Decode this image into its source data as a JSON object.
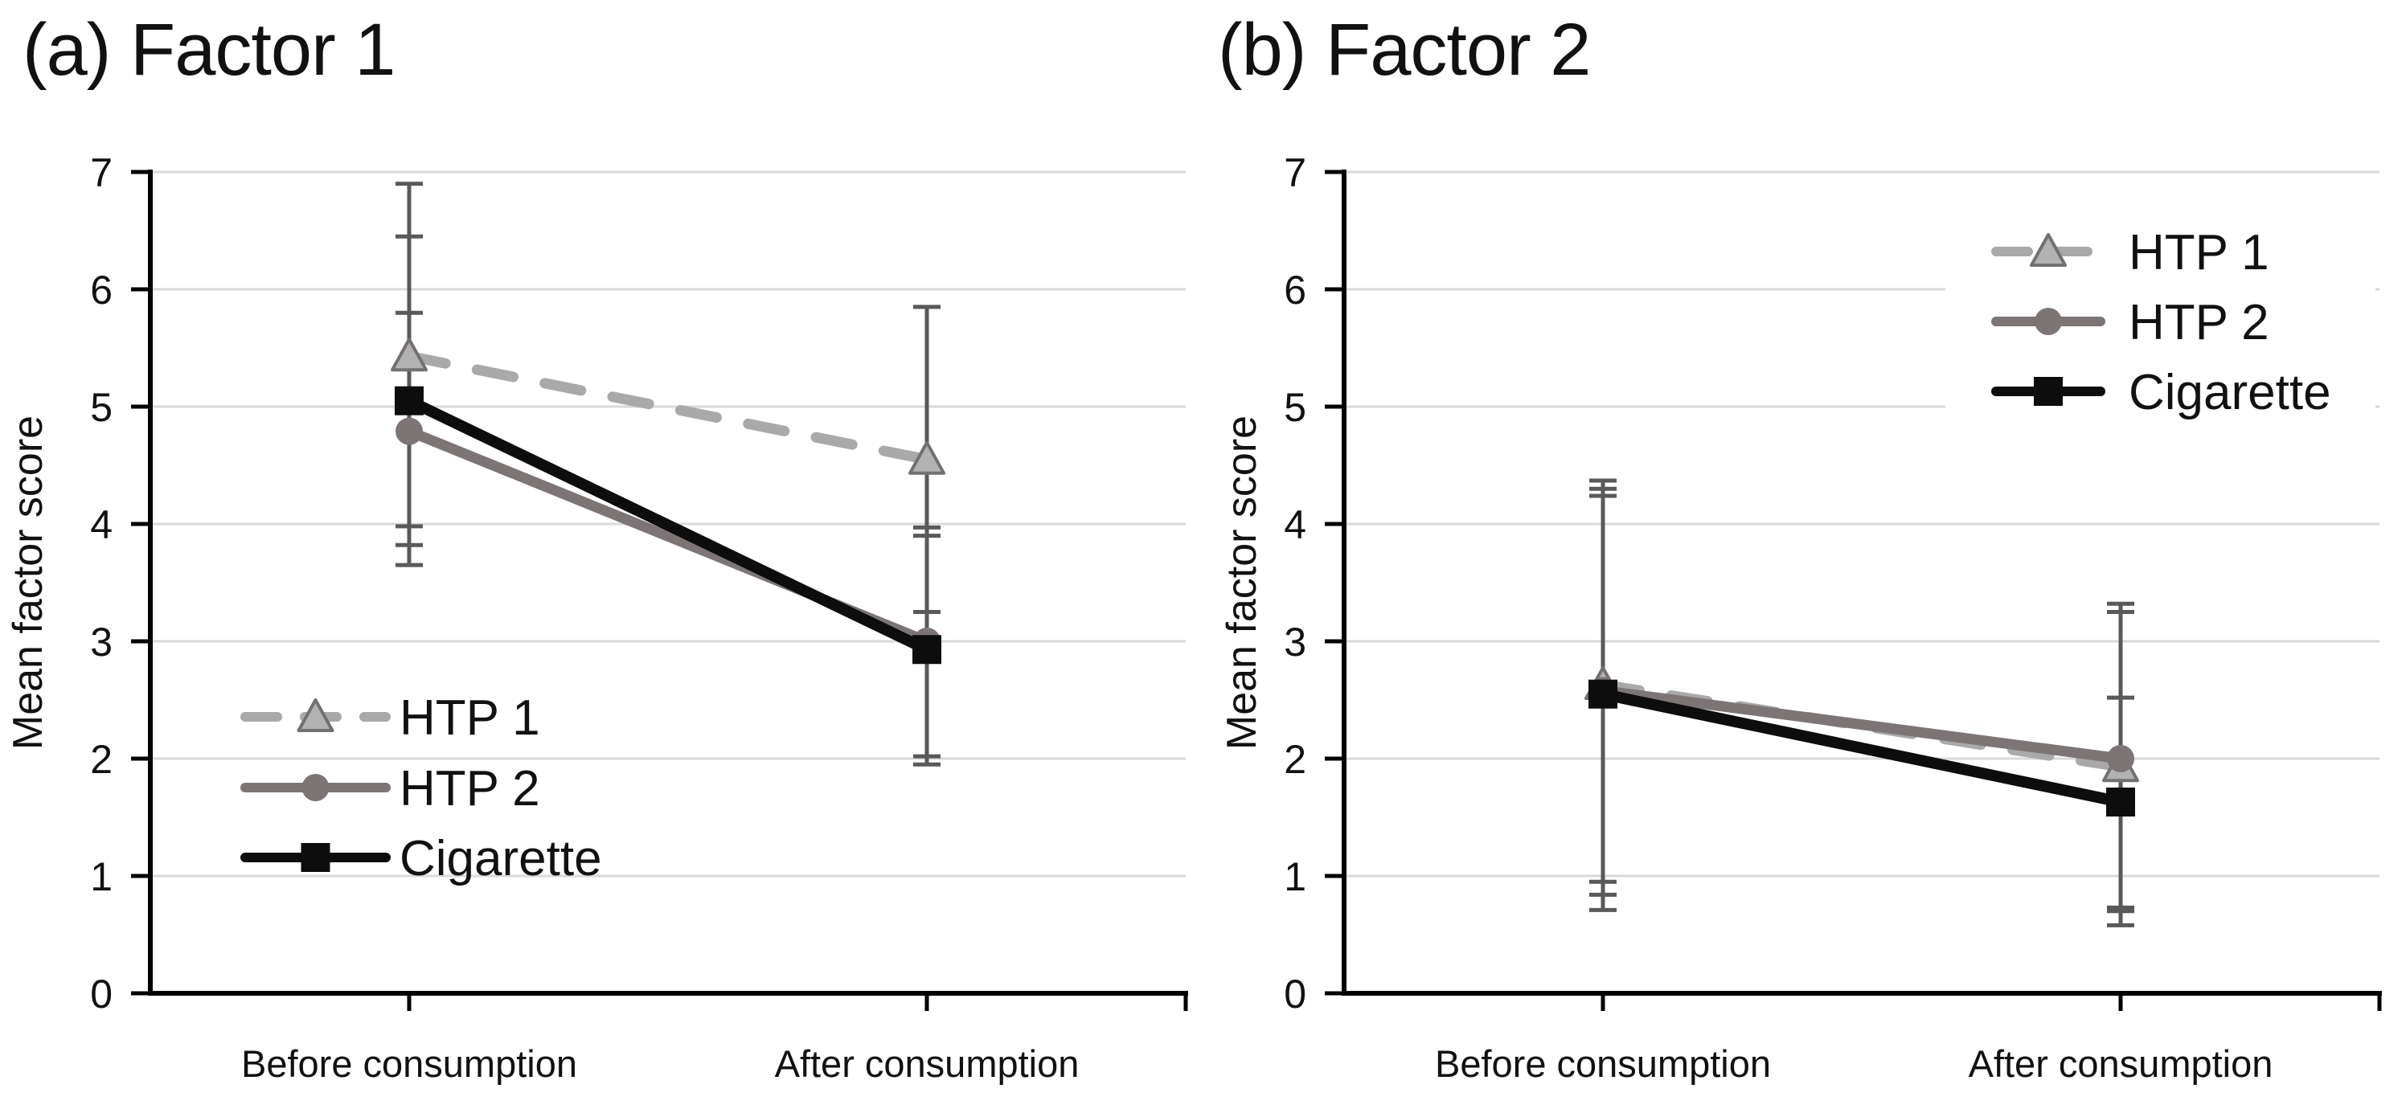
{
  "figure": {
    "kind": "two-panel line chart with error bars",
    "background": "#ffffff"
  },
  "colors": {
    "htp1_line": "#a9a9a9",
    "htp1_marker_fill": "#b2b2b2",
    "htp1_marker_stroke": "#757070",
    "htp2_line": "#7d7575",
    "cigarette_line": "#0d0d0d",
    "error_bar": "#595959",
    "gridline": "#d9d9d9",
    "axis": "#000000",
    "text": "#111111",
    "legend_background": "#ffffff"
  },
  "chart_data": [
    {
      "type": "line",
      "panel": "a",
      "title": "(a) Factor 1",
      "ylabel": "Mean factor score",
      "ylim": [
        0,
        7
      ],
      "yticks": [
        "0",
        "1",
        "2",
        "3",
        "4",
        "5",
        "6",
        "7"
      ],
      "grid": true,
      "categories": [
        "Before consumption",
        "After consumption"
      ],
      "legend_position": "lower-left",
      "series": [
        {
          "name": "HTP 1",
          "marker": "triangle",
          "line_style": "dashed",
          "values": [
            5.43,
            4.55
          ],
          "err_lo": [
            3.98,
            3.25
          ],
          "err_hi": [
            6.9,
            5.85
          ]
        },
        {
          "name": "HTP 2",
          "marker": "circle",
          "line_style": "solid",
          "values": [
            4.79,
            3.0
          ],
          "err_lo": [
            3.82,
            2.02
          ],
          "err_hi": [
            5.8,
            3.97
          ]
        },
        {
          "name": "Cigarette",
          "marker": "square",
          "line_style": "solid",
          "values": [
            5.05,
            2.93
          ],
          "err_lo": [
            3.65,
            1.95
          ],
          "err_hi": [
            6.45,
            3.9
          ]
        }
      ]
    },
    {
      "type": "line",
      "panel": "b",
      "title": "(b) Factor 2",
      "ylabel": "Mean factor score",
      "ylim": [
        0,
        7
      ],
      "yticks": [
        "0",
        "1",
        "2",
        "3",
        "4",
        "5",
        "6",
        "7"
      ],
      "grid": true,
      "categories": [
        "Before consumption",
        "After consumption"
      ],
      "legend_position": "upper-right",
      "series": [
        {
          "name": "HTP 1",
          "marker": "triangle",
          "line_style": "dashed",
          "values": [
            2.63,
            1.93
          ],
          "err_lo": [
            0.95,
            0.58
          ],
          "err_hi": [
            4.37,
            3.25
          ]
        },
        {
          "name": "HTP 2",
          "marker": "circle",
          "line_style": "solid",
          "values": [
            2.58,
            2.0
          ],
          "err_lo": [
            0.71,
            0.7
          ],
          "err_hi": [
            4.3,
            3.32
          ]
        },
        {
          "name": "Cigarette",
          "marker": "square",
          "line_style": "solid",
          "values": [
            2.55,
            1.63
          ],
          "err_lo": [
            0.84,
            0.73
          ],
          "err_hi": [
            4.24,
            2.52
          ]
        }
      ]
    }
  ]
}
